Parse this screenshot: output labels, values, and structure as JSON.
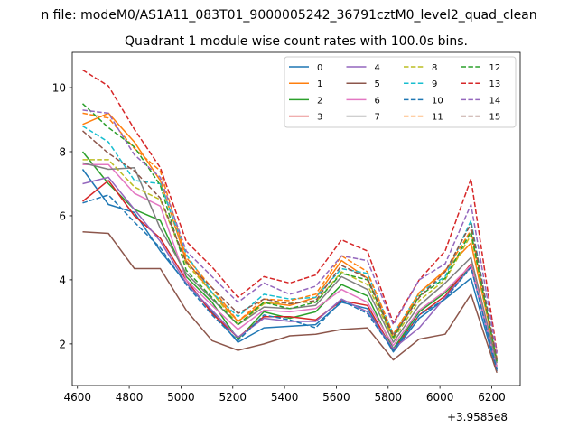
{
  "suptitle": "n file: modeM0/AS1A11_083T01_9000005242_36791cztM0_level2_quad_clean",
  "chart_data": {
    "type": "line",
    "title": "Quadrant 1 module wise count rates with 100.0s bins.",
    "xlabel": "",
    "ylabel": "",
    "x_offset_label": "+3.9585e8",
    "x": [
      4620,
      4720,
      4820,
      4920,
      5020,
      5120,
      5220,
      5320,
      5420,
      5520,
      5620,
      5720,
      5820,
      5920,
      6020,
      6120,
      6220
    ],
    "xlim": [
      4580,
      6310
    ],
    "ylim": [
      0.7,
      11.1
    ],
    "xticks": [
      4600,
      4800,
      5000,
      5200,
      5400,
      5600,
      5800,
      6000,
      6200
    ],
    "yticks": [
      2,
      4,
      6,
      8,
      10
    ],
    "grid": false,
    "legend": {
      "placement": "top-right",
      "columns": 4
    },
    "series": [
      {
        "name": "0",
        "color": "#1f77b4",
        "dash": false,
        "values": [
          7.45,
          6.35,
          6.1,
          4.9,
          3.9,
          3.0,
          2.05,
          2.5,
          2.55,
          2.6,
          3.3,
          3.1,
          1.75,
          2.8,
          3.4,
          4.05,
          1.15
        ]
      },
      {
        "name": "1",
        "color": "#ff7f0e",
        "dash": false,
        "values": [
          8.85,
          9.2,
          8.3,
          7.1,
          4.6,
          3.6,
          2.7,
          3.3,
          3.2,
          3.45,
          4.6,
          4.05,
          2.2,
          3.6,
          4.3,
          5.15,
          1.5
        ]
      },
      {
        "name": "2",
        "color": "#2ca02c",
        "dash": false,
        "values": [
          8.0,
          7.0,
          6.2,
          5.85,
          4.1,
          3.3,
          2.15,
          3.0,
          2.8,
          3.0,
          3.85,
          3.5,
          1.85,
          3.0,
          3.6,
          4.4,
          1.3
        ]
      },
      {
        "name": "3",
        "color": "#d62728",
        "dash": false,
        "values": [
          6.45,
          7.1,
          6.0,
          5.3,
          4.0,
          2.95,
          2.2,
          2.85,
          2.85,
          2.75,
          3.35,
          3.2,
          1.8,
          2.9,
          3.5,
          4.5,
          1.2
        ]
      },
      {
        "name": "4",
        "color": "#9467bd",
        "dash": false,
        "values": [
          7.0,
          7.2,
          6.2,
          5.2,
          3.9,
          3.05,
          2.2,
          2.8,
          2.7,
          2.7,
          3.4,
          3.0,
          1.85,
          2.5,
          3.45,
          4.4,
          1.2
        ]
      },
      {
        "name": "5",
        "color": "#8c564b",
        "dash": false,
        "values": [
          5.5,
          5.45,
          4.35,
          4.35,
          3.05,
          2.1,
          1.8,
          2.0,
          2.25,
          2.3,
          2.45,
          2.5,
          1.5,
          2.15,
          2.3,
          3.55,
          1.1
        ]
      },
      {
        "name": "6",
        "color": "#e377c2",
        "dash": false,
        "values": [
          7.6,
          7.6,
          6.7,
          6.3,
          4.0,
          3.2,
          2.45,
          3.05,
          3.0,
          3.1,
          3.7,
          3.3,
          1.95,
          3.05,
          3.65,
          4.45,
          1.3
        ]
      },
      {
        "name": "7",
        "color": "#7f7f7f",
        "dash": false,
        "values": [
          7.65,
          7.45,
          7.5,
          5.6,
          4.2,
          3.4,
          2.6,
          3.15,
          3.1,
          3.2,
          4.1,
          3.7,
          2.05,
          3.2,
          3.9,
          4.7,
          1.4
        ]
      },
      {
        "name": "8",
        "color": "#bcbd22",
        "dash": true,
        "values": [
          7.75,
          7.75,
          6.9,
          6.5,
          4.5,
          3.6,
          2.6,
          3.25,
          3.3,
          3.3,
          4.25,
          3.85,
          2.15,
          3.35,
          4.0,
          5.4,
          1.45
        ]
      },
      {
        "name": "9",
        "color": "#17becf",
        "dash": true,
        "values": [
          8.8,
          8.3,
          7.1,
          7.0,
          4.8,
          3.6,
          2.85,
          3.55,
          3.4,
          3.45,
          4.35,
          4.2,
          2.3,
          3.6,
          4.1,
          5.85,
          1.5
        ]
      },
      {
        "name": "10",
        "color": "#1f77b4",
        "dash": true,
        "values": [
          6.4,
          6.65,
          5.8,
          5.0,
          3.85,
          2.9,
          2.1,
          2.9,
          2.75,
          2.5,
          3.35,
          2.95,
          1.8,
          2.9,
          3.4,
          4.4,
          1.2
        ]
      },
      {
        "name": "11",
        "color": "#ff7f0e",
        "dash": true,
        "values": [
          9.2,
          9.05,
          8.1,
          7.4,
          4.7,
          3.75,
          2.7,
          3.4,
          3.35,
          3.55,
          4.75,
          4.25,
          2.3,
          3.6,
          4.25,
          5.55,
          1.55
        ]
      },
      {
        "name": "12",
        "color": "#2ca02c",
        "dash": true,
        "values": [
          9.5,
          8.75,
          8.15,
          6.95,
          4.3,
          3.45,
          2.6,
          3.3,
          3.1,
          3.3,
          4.2,
          4.0,
          2.2,
          3.5,
          4.05,
          5.5,
          1.45
        ]
      },
      {
        "name": "13",
        "color": "#d62728",
        "dash": true,
        "values": [
          10.55,
          10.05,
          8.7,
          7.5,
          5.2,
          4.4,
          3.45,
          4.1,
          3.9,
          4.15,
          5.25,
          4.9,
          2.65,
          4.0,
          4.9,
          7.15,
          1.75
        ]
      },
      {
        "name": "14",
        "color": "#9467bd",
        "dash": true,
        "values": [
          9.3,
          9.2,
          7.9,
          7.2,
          4.9,
          4.1,
          3.3,
          3.9,
          3.55,
          3.8,
          4.75,
          4.6,
          2.6,
          4.0,
          4.5,
          6.35,
          1.7
        ]
      },
      {
        "name": "15",
        "color": "#8c564b",
        "dash": true,
        "values": [
          8.65,
          7.95,
          7.4,
          6.55,
          4.55,
          3.75,
          2.95,
          3.4,
          3.25,
          3.35,
          4.45,
          4.05,
          2.25,
          3.45,
          4.25,
          5.75,
          1.5
        ]
      }
    ]
  }
}
